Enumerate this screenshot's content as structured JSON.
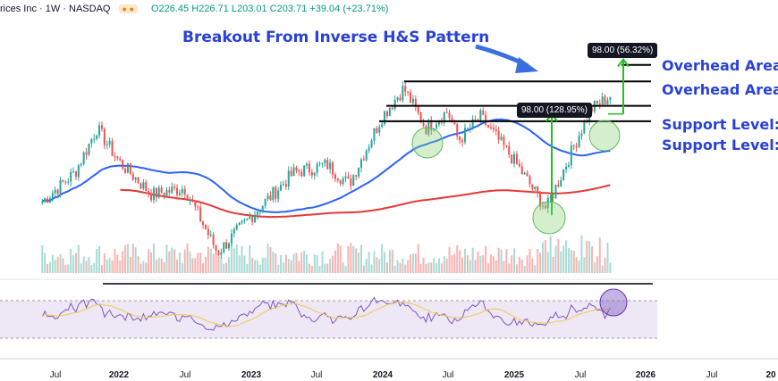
{
  "header": {
    "symbol_text": "rices Inc · 1W · NASDAQ",
    "ohlc": "O226.45 H226.71 L203.01 C203.71 +39.04 (+23.71%)"
  },
  "annotations": {
    "breakout": "Breakout From Inverse H&S Pattern",
    "overhead_1": "Overhead Area",
    "overhead_2": "Overhead Area",
    "support_1": "Support Level:",
    "support_2": "Support Level:",
    "measured_move_1": "98.00 (128.95%)",
    "measured_move_2": "98.00 (56.32%)"
  },
  "colors": {
    "up": "#26a69a",
    "down": "#ef5350",
    "ma_short": "#2962ff",
    "ma_long": "#e53935",
    "annotation_blue": "#2941d8",
    "arrow_green": "#22c11c",
    "rsi": "#7e57c2",
    "rsi_ma": "#f2c94c"
  },
  "chart_data": {
    "type": "candlestick",
    "title": "",
    "interval": "1W",
    "x_ticks": [
      "Jul",
      "2022",
      "Jul",
      "2023",
      "Jul",
      "2024",
      "Jul",
      "2025",
      "Jul",
      "2026",
      "Jul",
      "20"
    ],
    "price_path": [
      {
        "date": "2021-06",
        "close": 85
      },
      {
        "date": "2021-09",
        "close": 108
      },
      {
        "date": "2021-11",
        "close": 155
      },
      {
        "date": "2022-01",
        "close": 118
      },
      {
        "date": "2022-04",
        "close": 90
      },
      {
        "date": "2022-07",
        "close": 95
      },
      {
        "date": "2022-10",
        "close": 56
      },
      {
        "date": "2023-01",
        "close": 75
      },
      {
        "date": "2023-05",
        "close": 108
      },
      {
        "date": "2023-08",
        "close": 115
      },
      {
        "date": "2023-10",
        "close": 98
      },
      {
        "date": "2024-01",
        "close": 170
      },
      {
        "date": "2024-03",
        "close": 215
      },
      {
        "date": "2024-05",
        "close": 155
      },
      {
        "date": "2024-07",
        "close": 178
      },
      {
        "date": "2024-08",
        "close": 140
      },
      {
        "date": "2024-10",
        "close": 170
      },
      {
        "date": "2025-01",
        "close": 120
      },
      {
        "date": "2025-04",
        "close": 80
      },
      {
        "date": "2025-06",
        "close": 120
      },
      {
        "date": "2025-08",
        "close": 180
      },
      {
        "date": "2025-10",
        "close": 203.71
      }
    ],
    "horizontal_levels": [
      {
        "name": "Overhead Area",
        "value": 260
      },
      {
        "name": "Overhead Area",
        "value": 227
      },
      {
        "name": "Support Level",
        "value": 186
      },
      {
        "name": "Support Level",
        "value": 164
      }
    ],
    "measured_moves": [
      {
        "label": "98.00 (128.95%)",
        "from": 76,
        "to": 174
      },
      {
        "label": "98.00 (56.32%)",
        "from": 174,
        "to": 272
      }
    ],
    "indicators": [
      "50-week moving average",
      "200-week moving average",
      "Volume",
      "RSI"
    ]
  }
}
